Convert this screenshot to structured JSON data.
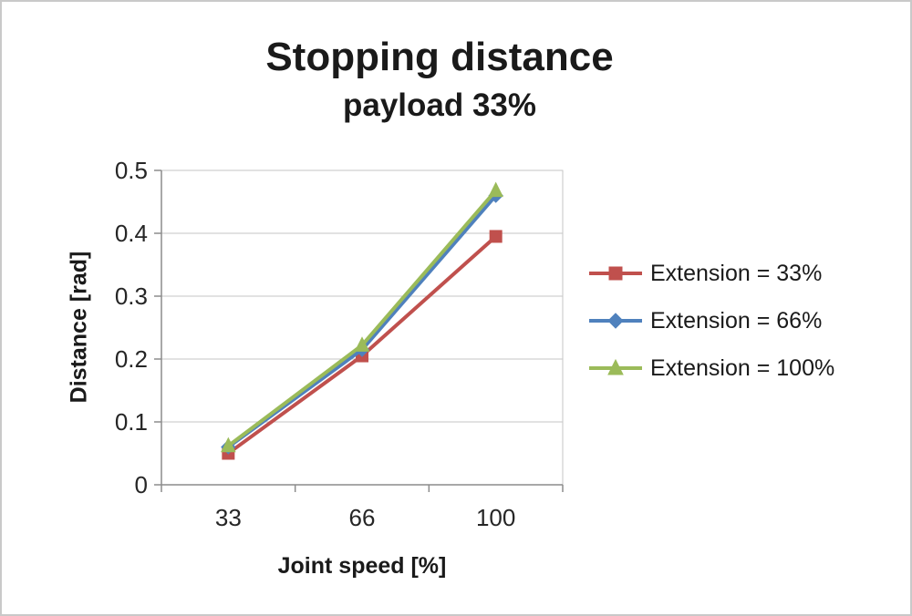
{
  "chart_data": {
    "type": "line",
    "title": "Stopping distance",
    "subtitle": "payload 33%",
    "xlabel": "Joint speed [%]",
    "ylabel": "Distance [rad]",
    "categories": [
      "33",
      "66",
      "100"
    ],
    "ylim": [
      0,
      0.5
    ],
    "yticks": [
      "0",
      "0.1",
      "0.2",
      "0.3",
      "0.4",
      "0.5"
    ],
    "grid": "horizontal",
    "legend_position": "right",
    "axis_color": "#8c8c8c",
    "gridline_color": "#c6c6c6",
    "text_color": "#262626",
    "series": [
      {
        "name": "Extension = 33%",
        "color": "#C0504D",
        "marker": "square",
        "values": [
          0.05,
          0.205,
          0.395
        ]
      },
      {
        "name": "Extension = 66%",
        "color": "#4F81BD",
        "marker": "diamond",
        "values": [
          0.06,
          0.215,
          0.46
        ]
      },
      {
        "name": "Extension = 100%",
        "color": "#9BBB59",
        "marker": "triangle",
        "values": [
          0.062,
          0.222,
          0.468
        ]
      }
    ]
  }
}
